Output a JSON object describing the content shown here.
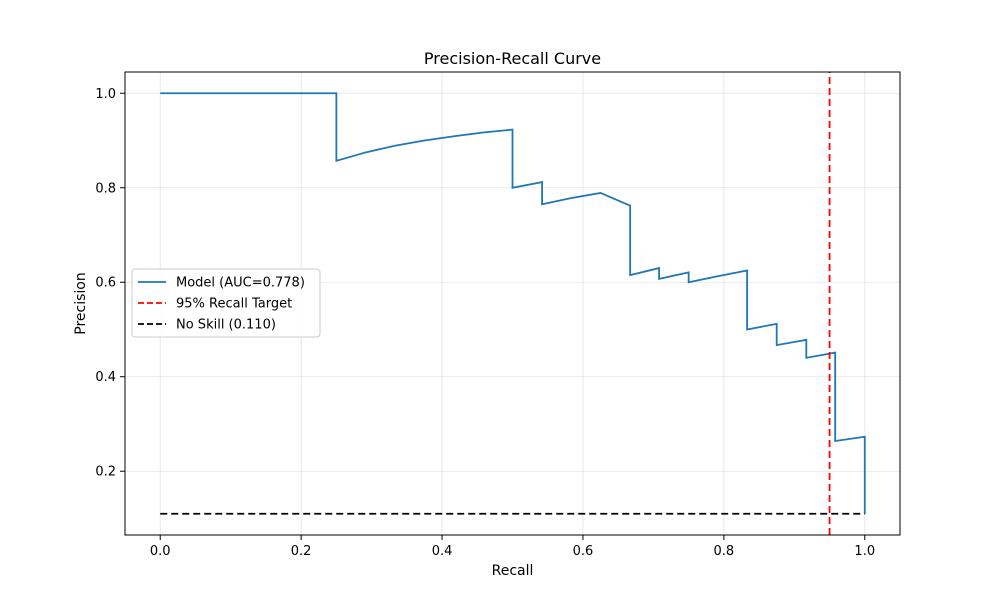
{
  "chart_data": {
    "type": "line",
    "title": "Precision-Recall Curve",
    "xlabel": "Recall",
    "ylabel": "Precision",
    "xlim": [
      -0.05,
      1.05
    ],
    "ylim": [
      0.065,
      1.045
    ],
    "xticks": [
      0.0,
      0.2,
      0.4,
      0.6,
      0.8,
      1.0
    ],
    "xtick_labels": [
      "0.0",
      "0.2",
      "0.4",
      "0.6",
      "0.8",
      "1.0"
    ],
    "yticks": [
      0.2,
      0.4,
      0.6,
      0.8,
      1.0
    ],
    "ytick_labels": [
      "0.2",
      "0.4",
      "0.6",
      "0.8",
      "1.0"
    ],
    "grid": true,
    "legend_position": "center-left",
    "series": [
      {
        "name": "Model (AUC=0.778)",
        "color": "#1f77b4",
        "style": "solid",
        "x": [
          0.0,
          0.25,
          0.25,
          0.292,
          0.333,
          0.375,
          0.417,
          0.458,
          0.5,
          0.5,
          0.542,
          0.542,
          0.583,
          0.625,
          0.667,
          0.667,
          0.708,
          0.708,
          0.75,
          0.75,
          0.792,
          0.833,
          0.833,
          0.875,
          0.875,
          0.917,
          0.917,
          0.958,
          0.958,
          1.0,
          1.0
        ],
        "y": [
          1.0,
          1.0,
          0.857,
          0.875,
          0.889,
          0.9,
          0.909,
          0.917,
          0.923,
          0.8,
          0.812,
          0.765,
          0.778,
          0.789,
          0.762,
          0.615,
          0.63,
          0.607,
          0.621,
          0.6,
          0.613,
          0.625,
          0.5,
          0.512,
          0.467,
          0.478,
          0.44,
          0.451,
          0.264,
          0.273,
          0.11
        ]
      },
      {
        "name": "95% Recall Target",
        "color": "#ff0000",
        "style": "dashed",
        "x": [
          0.95,
          0.95
        ],
        "y": [
          0.065,
          1.045
        ]
      },
      {
        "name": "No Skill (0.110)",
        "color": "#000000",
        "style": "dashed",
        "x": [
          0.0,
          1.0
        ],
        "y": [
          0.11,
          0.11
        ]
      }
    ]
  }
}
